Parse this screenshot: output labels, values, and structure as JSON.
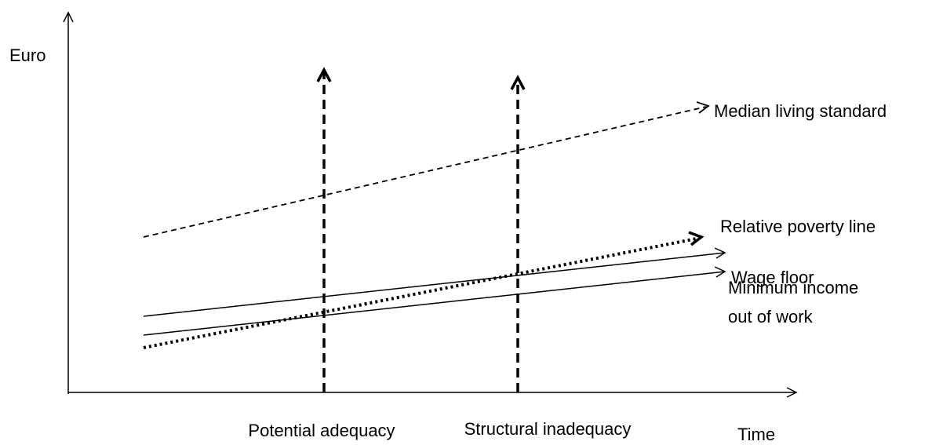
{
  "axes": {
    "y_label": "Euro",
    "x_label": "Time"
  },
  "lines": [
    {
      "label": "Median living standard"
    },
    {
      "label": "Relative poverty line"
    },
    {
      "label": "Wage floor"
    },
    {
      "label": "Minimum income out of work",
      "label_lines": [
        "Minimum income",
        "out of work"
      ]
    }
  ],
  "markers": [
    {
      "label": "Potential adequacy"
    },
    {
      "label": "Structural inadequacy"
    }
  ]
}
